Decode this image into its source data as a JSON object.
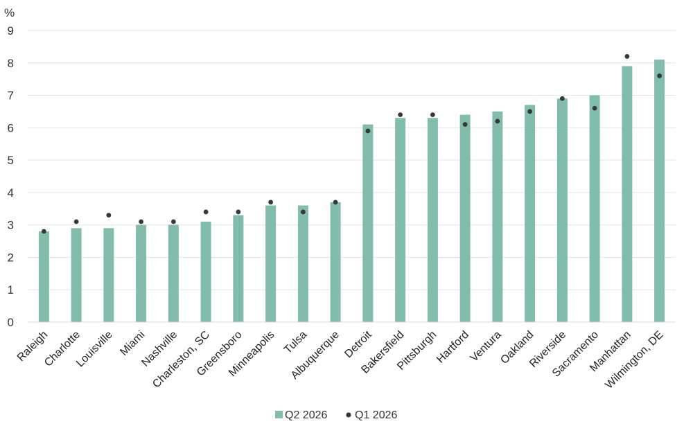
{
  "chart_data": {
    "type": "bar",
    "unit_label": "%",
    "categories": [
      "Raleigh",
      "Charlotte",
      "Louisville",
      "Miami",
      "Nashville",
      "Charleston, SC",
      "Greensboro",
      "Minneapolis",
      "Tulsa",
      "Albuquerque",
      "Detroit",
      "Bakersfield",
      "Pittsburgh",
      "Hartford",
      "Ventura",
      "Oakland",
      "Riverside",
      "Sacramento",
      "Manhattan",
      "Wilmington, DE"
    ],
    "series": [
      {
        "name": "Q2 2026",
        "kind": "bar",
        "color": "#82bcac",
        "values": [
          2.8,
          2.9,
          2.9,
          3.0,
          3.0,
          3.1,
          3.3,
          3.6,
          3.6,
          3.7,
          6.1,
          6.3,
          6.3,
          6.4,
          6.5,
          6.7,
          6.9,
          7.0,
          7.9,
          8.1
        ]
      },
      {
        "name": "Q1 2026",
        "kind": "dot",
        "color": "#333a38",
        "values": [
          2.8,
          3.1,
          3.3,
          3.1,
          3.1,
          3.4,
          3.4,
          3.7,
          3.4,
          3.7,
          5.9,
          6.4,
          6.4,
          6.1,
          6.2,
          6.5,
          6.9,
          6.6,
          8.2,
          7.6
        ]
      }
    ],
    "ylim": [
      0,
      9
    ],
    "yticks": [
      "0",
      "1",
      "2",
      "3",
      "4",
      "5",
      "6",
      "7",
      "8",
      "9"
    ],
    "grid": true,
    "legend_position": "bottom-center",
    "gridline_color": "#e4e4e4",
    "axis_color": "#d9d9d9"
  }
}
